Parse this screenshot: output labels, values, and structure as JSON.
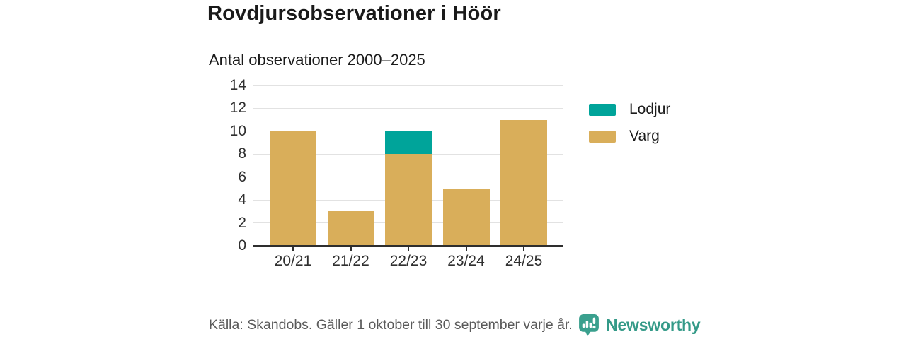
{
  "header": {
    "title": "Rovdjursobservationer i Höör",
    "subtitle": "Antal observationer 2000–2025"
  },
  "chart_data": {
    "type": "bar",
    "stacked": true,
    "title": "Rovdjursobservationer i Höör",
    "subtitle": "Antal observationer 2000–2025",
    "categories": [
      "20/21",
      "21/22",
      "22/23",
      "23/24",
      "24/25"
    ],
    "series": [
      {
        "name": "Varg",
        "color": "#d9ae5a",
        "values": [
          10,
          3,
          8,
          5,
          11
        ]
      },
      {
        "name": "Lodjur",
        "color": "#00a49a",
        "values": [
          0,
          0,
          2,
          0,
          0
        ]
      }
    ],
    "totals": [
      10,
      3,
      10,
      5,
      11
    ],
    "xlabel": "",
    "ylabel": "",
    "ylim": [
      0,
      14
    ],
    "yticks": [
      0,
      2,
      4,
      6,
      8,
      10,
      12,
      14
    ],
    "grid": true,
    "legend_position": "right"
  },
  "legend": {
    "items": [
      {
        "label": "Lodjur",
        "color": "#00a49a"
      },
      {
        "label": "Varg",
        "color": "#d9ae5a"
      }
    ]
  },
  "footer": {
    "source": "Källa: Skandobs. Gäller 1 oktober till 30 september varje år.",
    "brand": "Newsworthy"
  },
  "colors": {
    "varg_gold": "#d9ae5a",
    "lodjur_teal": "#00a49a",
    "brand_teal": "#3aa08e",
    "brand_text_teal": "#349a88",
    "axis": "#2e2e2e",
    "gridline": "#e2e2e2",
    "title_text": "#1a1a1a",
    "muted_text": "#5a5a5a"
  }
}
